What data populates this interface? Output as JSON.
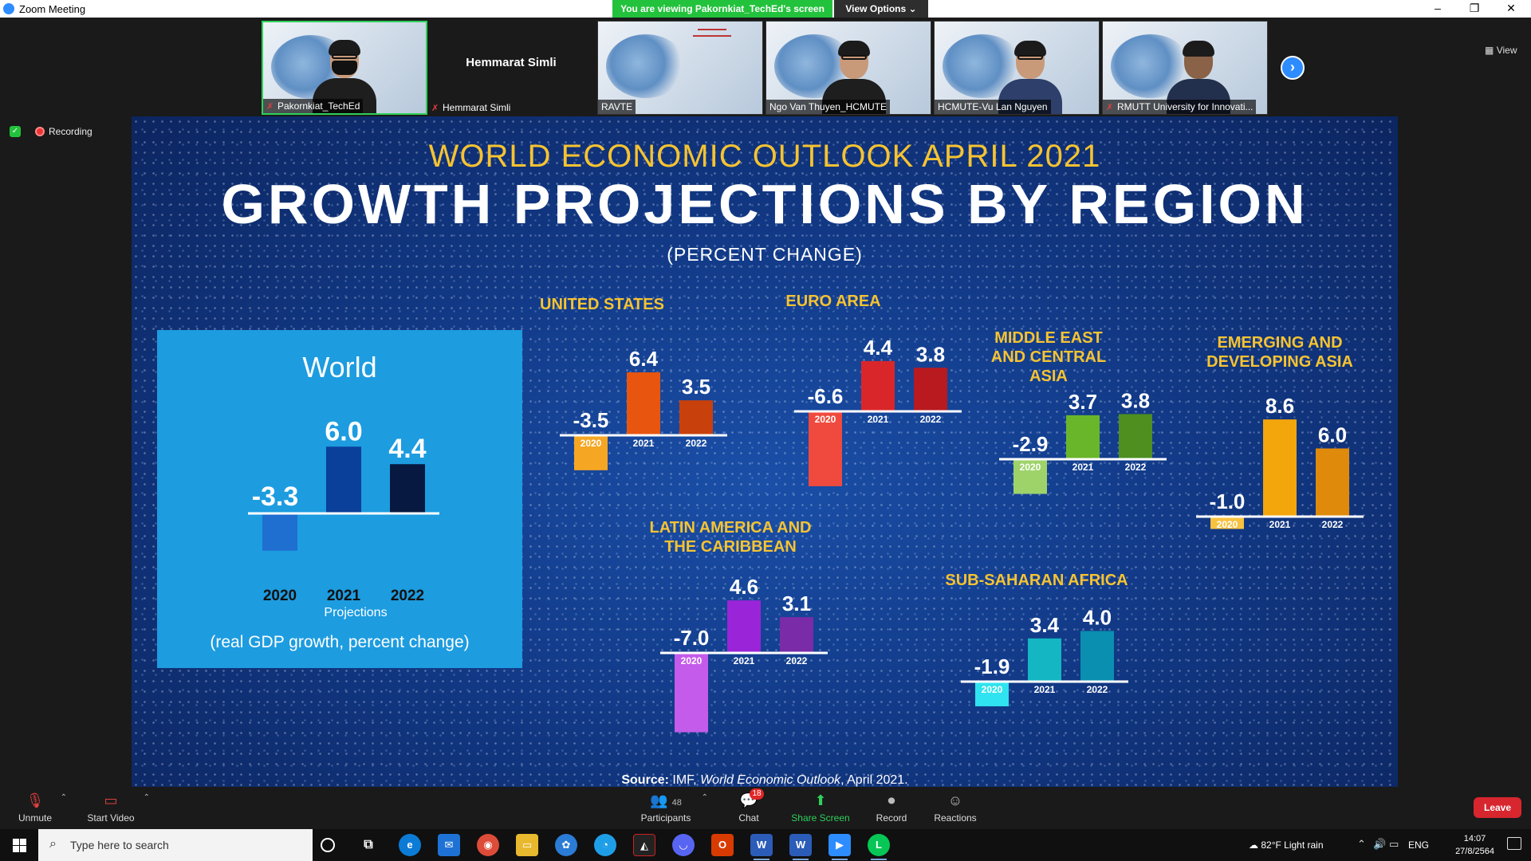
{
  "window": {
    "title": "Zoom Meeting",
    "banner": "You are viewing Pakornkiat_TechEd's screen",
    "view_options": "View Options",
    "view_label": "View",
    "minimize": "–",
    "restore": "❐",
    "close": "✕"
  },
  "participants_strip": [
    {
      "name": "Pakornkiat_TechEd",
      "muted": true,
      "active": true,
      "video": true
    },
    {
      "name": "Hemmarat Simli",
      "muted": true,
      "active": false,
      "video": false
    },
    {
      "name": "RAVTE",
      "muted": false,
      "active": false,
      "video": true
    },
    {
      "name": "Ngo Van Thuyen_HCMUTE",
      "muted": false,
      "active": false,
      "video": true
    },
    {
      "name": "HCMUTE-Vu Lan Nguyen",
      "muted": false,
      "active": false,
      "video": true
    },
    {
      "name": "RMUTT University for Innovati...",
      "muted": true,
      "active": false,
      "video": true
    }
  ],
  "status": {
    "recording": "Recording"
  },
  "slide": {
    "title_line1": "WORLD ECONOMIC OUTLOOK APRIL 2021",
    "title_line2": "GROWTH PROJECTIONS BY REGION",
    "subtitle": "(PERCENT CHANGE)",
    "world": {
      "title": "World",
      "projections": "Projections",
      "footnote": "(real GDP growth, percent change)"
    },
    "source_prefix": "Source:",
    "source_org": "IMF,",
    "source_pub": "World Economic Outlook",
    "source_date": ", April 2021."
  },
  "chart_data": [
    {
      "type": "bar",
      "title": "World",
      "categories": [
        "2020",
        "2021",
        "2022"
      ],
      "values": [
        -3.3,
        6.0,
        4.4
      ],
      "value_labels": [
        "-3.3",
        "6.0",
        "4.4"
      ],
      "colors": [
        "#1f6fd0",
        "#0a3f9a",
        "#071940"
      ]
    },
    {
      "type": "bar",
      "title": "UNITED STATES",
      "categories": [
        "2020",
        "2021",
        "2022"
      ],
      "values": [
        -3.5,
        6.4,
        3.5
      ],
      "value_labels": [
        "-3.5",
        "6.4",
        "3.5"
      ],
      "colors": [
        "#f5a623",
        "#e8550f",
        "#c8400c"
      ]
    },
    {
      "type": "bar",
      "title": "EURO AREA",
      "categories": [
        "2020",
        "2021",
        "2022"
      ],
      "values": [
        -6.6,
        4.4,
        3.8
      ],
      "value_labels": [
        "-6.6",
        "4.4",
        "3.8"
      ],
      "colors": [
        "#f04a3e",
        "#d9262a",
        "#b81a1f"
      ]
    },
    {
      "type": "bar",
      "title": "MIDDLE EAST AND CENTRAL ASIA",
      "categories": [
        "2020",
        "2021",
        "2022"
      ],
      "values": [
        -2.9,
        3.7,
        3.8
      ],
      "value_labels": [
        "-2.9",
        "3.7",
        "3.8"
      ],
      "colors": [
        "#9ed36a",
        "#6ab62a",
        "#4e8f1f"
      ]
    },
    {
      "type": "bar",
      "title": "EMERGING AND DEVELOPING ASIA",
      "categories": [
        "2020",
        "2021",
        "2022"
      ],
      "values": [
        -1.0,
        8.6,
        6.0
      ],
      "value_labels": [
        "-1.0",
        "8.6",
        "6.0"
      ],
      "colors": [
        "#f8c240",
        "#f3a50c",
        "#e08a0c"
      ]
    },
    {
      "type": "bar",
      "title": "LATIN AMERICA AND THE CARIBBEAN",
      "categories": [
        "2020",
        "2021",
        "2022"
      ],
      "values": [
        -7.0,
        4.6,
        3.1
      ],
      "value_labels": [
        "-7.0",
        "4.6",
        "3.1"
      ],
      "colors": [
        "#c45bea",
        "#9a25d8",
        "#7a2ba8"
      ]
    },
    {
      "type": "bar",
      "title": "SUB-SAHARAN AFRICA",
      "categories": [
        "2020",
        "2021",
        "2022"
      ],
      "values": [
        -1.9,
        3.4,
        4.0
      ],
      "value_labels": [
        "-1.9",
        "3.4",
        "4.0"
      ],
      "colors": [
        "#2fe3f0",
        "#13b6c2",
        "#0a8fb0"
      ]
    }
  ],
  "toolbar": {
    "unmute": "Unmute",
    "start_video": "Start Video",
    "participants": "Participants",
    "participants_count": "48",
    "chat": "Chat",
    "chat_badge": "18",
    "share_screen": "Share Screen",
    "record": "Record",
    "reactions": "Reactions",
    "leave": "Leave"
  },
  "taskbar": {
    "search_placeholder": "Type here to search",
    "weather": "82°F  Light rain",
    "language": "ENG",
    "time": "14:07",
    "date": "27/8/2564"
  }
}
